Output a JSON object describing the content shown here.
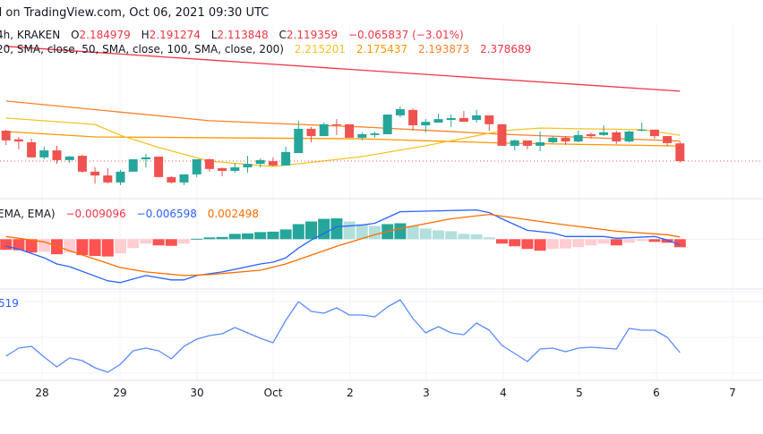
{
  "header": {
    "published": "d on TradingView.com, Oct 06, 2021 09:30 UTC",
    "symbol_info": "4h, KRAKEN",
    "ohlc": {
      "open_label": "O",
      "open": "2.184979",
      "high_label": "H",
      "high": "2.191274",
      "low_label": "L",
      "low": "2.113848",
      "close_label": "C",
      "close": "2.119359",
      "change": "−0.065837 (−3.01%)"
    },
    "sma_params": "20, SMA, close, 50, SMA, close, 100, SMA, close, 200)",
    "sma_values": [
      "2.215201",
      "2.175437",
      "2.193873",
      "2.378689"
    ]
  },
  "macd_legend": {
    "params": "EMA, EMA)",
    "histogram": "−0.009096",
    "macd": "−0.006598",
    "signal": "0.002498"
  },
  "rsi_legend": {
    "value": "519"
  },
  "colors": {
    "up": "#26a69a",
    "down": "#ef5350",
    "hist_up_strong": "#26a69a",
    "hist_up_weak": "#b2dfdb",
    "hist_down_strong": "#ff5252",
    "hist_down_weak": "#ffcdd2",
    "sma20": "#f7c325",
    "sma50": "#ff9800",
    "sma100": "#ff7f27",
    "sma200": "#f23645",
    "macd": "#2962ff",
    "signal": "#ff6d00",
    "rsi": "#5b8cff",
    "last_price_line": "#ef5350"
  },
  "chart_data": [
    {
      "type": "candlestick",
      "title": "4h, KRAKEN",
      "x_tick_labels": [
        "28",
        "29",
        "30",
        "Oct",
        "2",
        "3",
        "4",
        "5",
        "6",
        "7"
      ],
      "candles_ohlc": [
        [
          "09-27 12:00",
          2.232,
          2.236,
          2.179,
          2.196
        ],
        [
          "09-27 16:00",
          2.2,
          2.209,
          2.163,
          2.192
        ],
        [
          "09-27 20:00",
          2.189,
          2.202,
          2.133,
          2.133
        ],
        [
          "09-28 00:00",
          2.133,
          2.173,
          2.126,
          2.159
        ],
        [
          "09-28 04:00",
          2.159,
          2.176,
          2.109,
          2.123
        ],
        [
          "09-28 08:00",
          2.123,
          2.139,
          2.113,
          2.136
        ],
        [
          "09-28 12:00",
          2.139,
          2.143,
          2.076,
          2.08
        ],
        [
          "09-28 16:00",
          2.08,
          2.096,
          2.036,
          2.066
        ],
        [
          "09-28 20:00",
          2.066,
          2.093,
          2.036,
          2.04
        ],
        [
          "09-29 00:00",
          2.04,
          2.086,
          2.03,
          2.08
        ],
        [
          "09-29 04:00",
          2.08,
          2.126,
          2.08,
          2.126
        ],
        [
          "09-29 08:00",
          2.126,
          2.146,
          2.096,
          2.133
        ],
        [
          "09-29 12:00",
          2.136,
          2.136,
          2.06,
          2.06
        ],
        [
          "09-29 16:00",
          2.06,
          2.063,
          2.036,
          2.04
        ],
        [
          "09-29 20:00",
          2.04,
          2.07,
          2.03,
          2.07
        ],
        [
          "09-30 00:00",
          2.07,
          2.126,
          2.06,
          2.126
        ],
        [
          "09-30 04:00",
          2.126,
          2.129,
          2.08,
          2.09
        ],
        [
          "09-30 08:00",
          2.093,
          2.096,
          2.063,
          2.083
        ],
        [
          "09-30 12:00",
          2.083,
          2.113,
          2.076,
          2.096
        ],
        [
          "09-30 16:00",
          2.096,
          2.139,
          2.076,
          2.109
        ],
        [
          "09-30 20:00",
          2.109,
          2.129,
          2.096,
          2.123
        ],
        [
          "10-01 00:00",
          2.119,
          2.133,
          2.099,
          2.103
        ],
        [
          "10-01 04:00",
          2.103,
          2.173,
          2.103,
          2.153
        ],
        [
          "10-01 08:00",
          2.149,
          2.269,
          2.149,
          2.239
        ],
        [
          "10-01 12:00",
          2.239,
          2.246,
          2.189,
          2.212
        ],
        [
          "10-01 16:00",
          2.212,
          2.262,
          2.212,
          2.256
        ],
        [
          "10-01 20:00",
          2.256,
          2.275,
          2.216,
          2.252
        ],
        [
          "10-02 00:00",
          2.256,
          2.256,
          2.206,
          2.206
        ],
        [
          "10-02 04:00",
          2.206,
          2.226,
          2.196,
          2.219
        ],
        [
          "10-02 08:00",
          2.216,
          2.229,
          2.206,
          2.222
        ],
        [
          "10-02 12:00",
          2.219,
          2.292,
          2.219,
          2.292
        ],
        [
          "10-02 16:00",
          2.289,
          2.322,
          2.282,
          2.312
        ],
        [
          "10-02 20:00",
          2.309,
          2.315,
          2.232,
          2.252
        ],
        [
          "10-03 00:00",
          2.252,
          2.275,
          2.226,
          2.265
        ],
        [
          "10-03 04:00",
          2.262,
          2.295,
          2.262,
          2.275
        ],
        [
          "10-03 08:00",
          2.272,
          2.292,
          2.246,
          2.279
        ],
        [
          "10-03 12:00",
          2.279,
          2.305,
          2.265,
          2.265
        ],
        [
          "10-03 16:00",
          2.272,
          2.309,
          2.262,
          2.289
        ],
        [
          "10-03 20:00",
          2.289,
          2.289,
          2.232,
          2.256
        ],
        [
          "10-04 00:00",
          2.256,
          2.256,
          2.176,
          2.176
        ],
        [
          "10-04 04:00",
          2.176,
          2.199,
          2.159,
          2.196
        ],
        [
          "10-04 08:00",
          2.196,
          2.196,
          2.163,
          2.176
        ],
        [
          "10-04 12:00",
          2.176,
          2.229,
          2.156,
          2.189
        ],
        [
          "10-04 16:00",
          2.189,
          2.212,
          2.186,
          2.206
        ],
        [
          "10-04 20:00",
          2.206,
          2.212,
          2.179,
          2.192
        ],
        [
          "10-05 00:00",
          2.192,
          2.232,
          2.189,
          2.216
        ],
        [
          "10-05 04:00",
          2.219,
          2.226,
          2.202,
          2.212
        ],
        [
          "10-05 08:00",
          2.216,
          2.252,
          2.212,
          2.226
        ],
        [
          "10-05 12:00",
          2.226,
          2.232,
          2.183,
          2.192
        ],
        [
          "10-05 16:00",
          2.192,
          2.232,
          2.189,
          2.229
        ],
        [
          "10-05 20:00",
          2.232,
          2.262,
          2.229,
          2.236
        ],
        [
          "10-06 00:00",
          2.236,
          2.236,
          2.202,
          2.212
        ],
        [
          "10-06 04:00",
          2.212,
          2.212,
          2.176,
          2.186
        ],
        [
          "10-06 08:00",
          2.184979,
          2.191274,
          2.113848,
          2.119359
        ]
      ],
      "last_price": 2.119359,
      "sma": {
        "sma20": [
          [
            "09-27 12:00",
            2.279
          ],
          [
            "09-28 16:00",
            2.255
          ],
          [
            "09-29 00:00",
            2.215
          ],
          [
            "09-29 12:00",
            2.17
          ],
          [
            "09-30 04:00",
            2.119
          ],
          [
            "10-01 00:00",
            2.099
          ],
          [
            "10-02 04:00",
            2.136
          ],
          [
            "10-03 00:00",
            2.176
          ],
          [
            "10-04 00:00",
            2.232
          ],
          [
            "10-04 12:00",
            2.242
          ],
          [
            "10-05 20:00",
            2.236
          ],
          [
            "10-06 08:00",
            2.215201
          ]
        ],
        "sma50": [
          [
            "09-27 12:00",
            2.229
          ],
          [
            "09-28 16:00",
            2.209
          ],
          [
            "10-02 04:00",
            2.202
          ],
          [
            "10-04 00:00",
            2.186
          ],
          [
            "10-06 08:00",
            2.175437
          ]
        ],
        "sma100": [
          [
            "09-27 12:00",
            2.342
          ],
          [
            "09-30 04:00",
            2.269
          ],
          [
            "10-02 04:00",
            2.246
          ],
          [
            "10-04 00:00",
            2.219
          ],
          [
            "10-06 08:00",
            2.193873
          ]
        ],
        "sma200": [
          [
            "09-27 12:00",
            2.545
          ],
          [
            "09-30 16:00",
            2.485
          ],
          [
            "10-04 00:00",
            2.422
          ],
          [
            "10-06 08:00",
            2.378689
          ]
        ]
      }
    },
    {
      "type": "bar+line",
      "title": "MACD",
      "histogram": [
        -0.012,
        -0.0125,
        -0.015,
        -0.014,
        -0.017,
        -0.015,
        -0.018,
        -0.019,
        -0.0195,
        -0.016,
        -0.01,
        -0.005,
        -0.007,
        -0.0075,
        -0.005,
        0.0005,
        0.002,
        0.0025,
        0.006,
        0.0065,
        0.008,
        0.0085,
        0.011,
        0.017,
        0.02,
        0.023,
        0.0235,
        0.02,
        0.017,
        0.015,
        0.017,
        0.018,
        0.015,
        0.012,
        0.01,
        0.009,
        0.006,
        0.0055,
        0.002,
        -0.005,
        -0.008,
        -0.011,
        -0.013,
        -0.011,
        -0.0105,
        -0.009,
        -0.007,
        -0.005,
        -0.007,
        -0.004,
        -0.002,
        -0.003,
        -0.004,
        -0.009096
      ],
      "macd": [
        [
          "09-27 12:00",
          -0.008
        ],
        [
          "09-27 16:00",
          -0.011
        ],
        [
          "09-28 00:00",
          -0.021
        ],
        [
          "09-28 04:00",
          -0.028
        ],
        [
          "09-28 08:00",
          -0.031
        ],
        [
          "09-28 20:00",
          -0.047
        ],
        [
          "09-29 00:00",
          -0.049
        ],
        [
          "09-29 08:00",
          -0.041
        ],
        [
          "09-29 16:00",
          -0.046
        ],
        [
          "09-29 20:00",
          -0.046
        ],
        [
          "09-30 00:00",
          -0.041
        ],
        [
          "09-30 08:00",
          -0.037
        ],
        [
          "09-30 20:00",
          -0.028
        ],
        [
          "10-01 00:00",
          -0.026
        ],
        [
          "10-01 04:00",
          -0.021
        ],
        [
          "10-01 08:00",
          -0.01
        ],
        [
          "10-01 12:00",
          -0.001
        ],
        [
          "10-01 20:00",
          0.014
        ],
        [
          "10-02 04:00",
          0.016
        ],
        [
          "10-02 08:00",
          0.018
        ],
        [
          "10-02 16:00",
          0.031
        ],
        [
          "10-03 04:00",
          0.032
        ],
        [
          "10-03 16:00",
          0.033
        ],
        [
          "10-03 20:00",
          0.03
        ],
        [
          "10-04 00:00",
          0.023
        ],
        [
          "10-04 08:00",
          0.01
        ],
        [
          "10-04 16:00",
          0.007
        ],
        [
          "10-04 20:00",
          0.003
        ],
        [
          "10-05 08:00",
          0.003
        ],
        [
          "10-05 12:00",
          0.001
        ],
        [
          "10-06 00:00",
          0.003
        ],
        [
          "10-06 04:00",
          -0.001
        ],
        [
          "10-06 08:00",
          -0.006598
        ]
      ],
      "signal": [
        [
          "09-27 12:00",
          0.003
        ],
        [
          "09-28 00:00",
          -0.003
        ],
        [
          "09-28 08:00",
          -0.013
        ],
        [
          "09-29 00:00",
          -0.032
        ],
        [
          "09-29 08:00",
          -0.037
        ],
        [
          "09-29 20:00",
          -0.041
        ],
        [
          "09-30 04:00",
          -0.04
        ],
        [
          "09-30 20:00",
          -0.035
        ],
        [
          "10-01 04:00",
          -0.028
        ],
        [
          "10-01 20:00",
          -0.008
        ],
        [
          "10-02 08:00",
          0.005
        ],
        [
          "10-02 16:00",
          0.012
        ],
        [
          "10-03 08:00",
          0.023
        ],
        [
          "10-03 20:00",
          0.028
        ],
        [
          "10-04 04:00",
          0.024
        ],
        [
          "10-04 16:00",
          0.018
        ],
        [
          "10-05 12:00",
          0.009
        ],
        [
          "10-06 04:00",
          0.005
        ],
        [
          "10-06 08:00",
          0.002498
        ]
      ]
    },
    {
      "type": "line",
      "title": "RSI",
      "gridlines": [
        70,
        50,
        30
      ],
      "values": [
        39.5,
        44,
        45,
        39,
        33.5,
        38.5,
        37,
        33,
        30.5,
        35,
        42.5,
        44,
        42.5,
        38,
        45,
        49,
        51,
        52,
        55.5,
        52.5,
        49.5,
        47,
        59.5,
        70,
        64.5,
        63.5,
        66.5,
        62.5,
        62.5,
        61.5,
        67,
        71,
        60.5,
        52.5,
        56,
        52.5,
        51.5,
        58,
        54,
        45.5,
        41,
        36.5,
        43.5,
        44,
        42,
        44,
        44.5,
        44,
        43.5,
        55,
        54,
        54,
        50,
        41.519
      ]
    }
  ]
}
